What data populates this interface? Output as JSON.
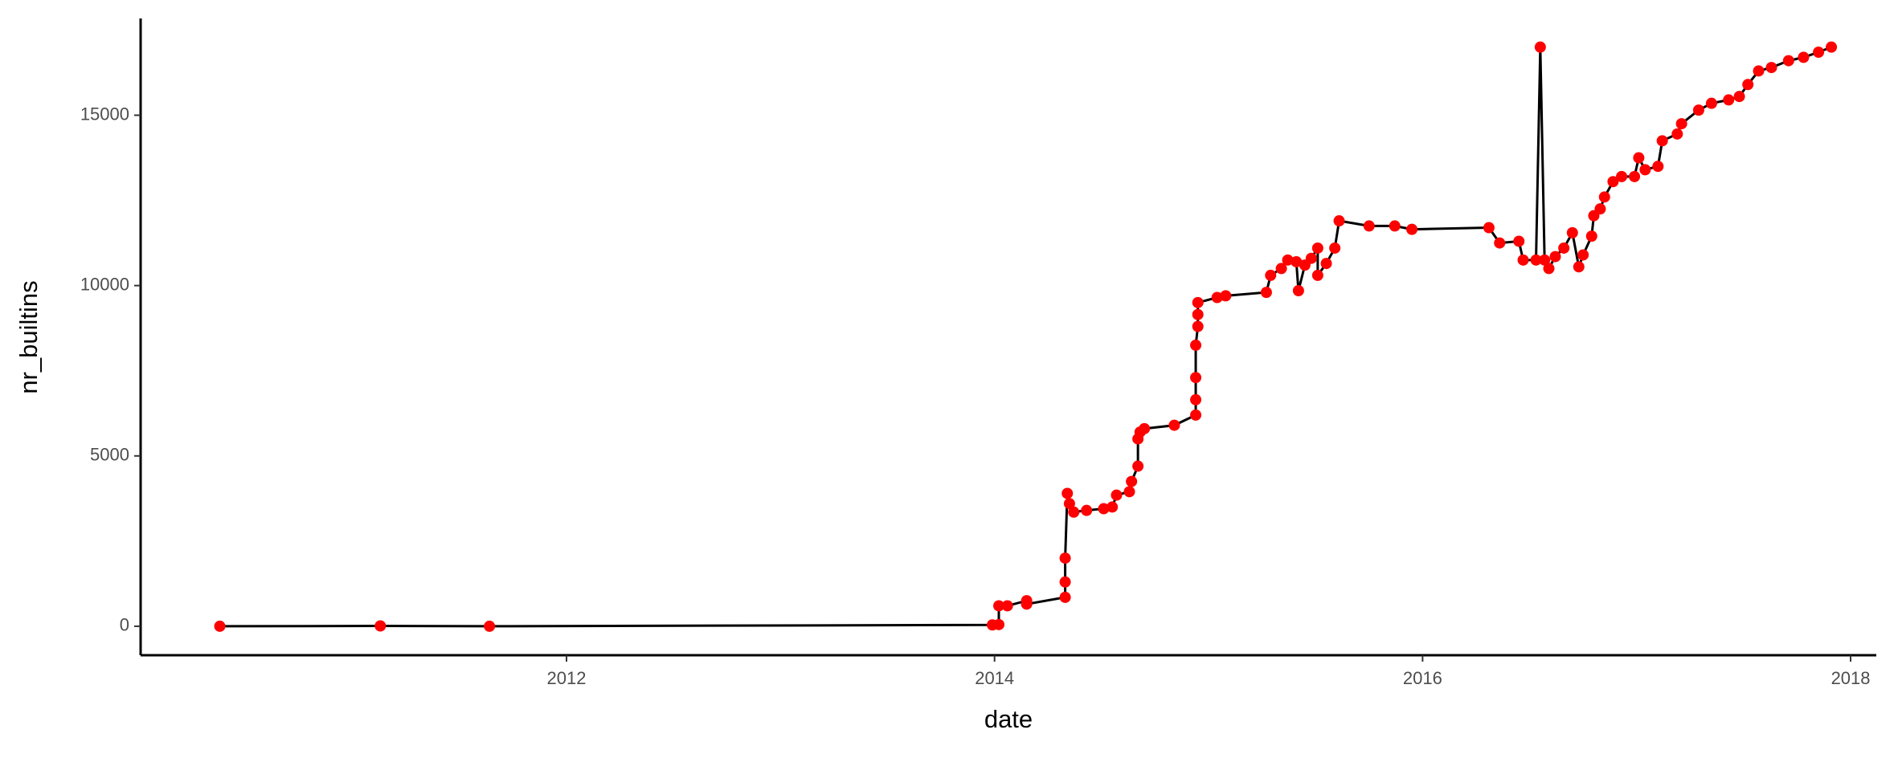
{
  "chart_data": {
    "type": "line",
    "x_label": "date",
    "y_label": "nr_builtins",
    "x": [
      2010.38,
      2011.13,
      2011.64,
      2013.99,
      2014.02,
      2014.02,
      2014.06,
      2014.15,
      2014.15,
      2014.33,
      2014.33,
      2014.33,
      2014.34,
      2014.35,
      2014.37,
      2014.43,
      2014.51,
      2014.55,
      2014.57,
      2014.63,
      2014.64,
      2014.67,
      2014.67,
      2014.68,
      2014.7,
      2014.84,
      2014.94,
      2014.94,
      2014.94,
      2014.94,
      2014.95,
      2014.95,
      2014.95,
      2015.04,
      2015.08,
      2015.27,
      2015.29,
      2015.34,
      2015.37,
      2015.41,
      2015.42,
      2015.45,
      2015.48,
      2015.51,
      2015.51,
      2015.55,
      2015.59,
      2015.61,
      2015.75,
      2015.87,
      2015.95,
      2016.31,
      2016.36,
      2016.45,
      2016.47,
      2016.53,
      2016.55,
      2016.57,
      2016.59,
      2016.62,
      2016.66,
      2016.7,
      2016.73,
      2016.75,
      2016.79,
      2016.8,
      2016.83,
      2016.85,
      2016.89,
      2016.93,
      2016.99,
      2017.01,
      2017.04,
      2017.1,
      2017.12,
      2017.19,
      2017.21,
      2017.29,
      2017.35,
      2017.43,
      2017.48,
      2017.52,
      2017.57,
      2017.63,
      2017.71,
      2017.78,
      2017.85,
      2017.91
    ],
    "values": [
      0,
      10,
      0,
      40,
      50,
      600,
      600,
      750,
      650,
      850,
      1300,
      2000,
      3900,
      3600,
      3350,
      3400,
      3450,
      3500,
      3850,
      3950,
      4250,
      4700,
      5500,
      5700,
      5800,
      5900,
      6200,
      6650,
      7300,
      8250,
      8800,
      9150,
      9500,
      9650,
      9700,
      9800,
      10300,
      10500,
      10750,
      10700,
      9850,
      10600,
      10800,
      11100,
      10300,
      10650,
      11100,
      11900,
      11750,
      11750,
      11650,
      11700,
      11250,
      11300,
      10750,
      10750,
      17000,
      10750,
      10500,
      10850,
      11100,
      11550,
      10550,
      10900,
      11450,
      12050,
      12250,
      12600,
      13050,
      13200,
      13200,
      13750,
      13400,
      13500,
      14250,
      14450,
      14750,
      15150,
      15350,
      15450,
      15550,
      15900,
      16300,
      16400,
      16600,
      16700,
      16850,
      17000
    ],
    "line_color": "#000000",
    "point_color": "#ff0000",
    "xlim": [
      2010.01,
      2018.12
    ],
    "xticks": [
      2012,
      2014,
      2016,
      2018
    ],
    "ylim": [
      -850,
      17840
    ],
    "yticks": [
      0,
      5000,
      10000,
      15000
    ]
  }
}
